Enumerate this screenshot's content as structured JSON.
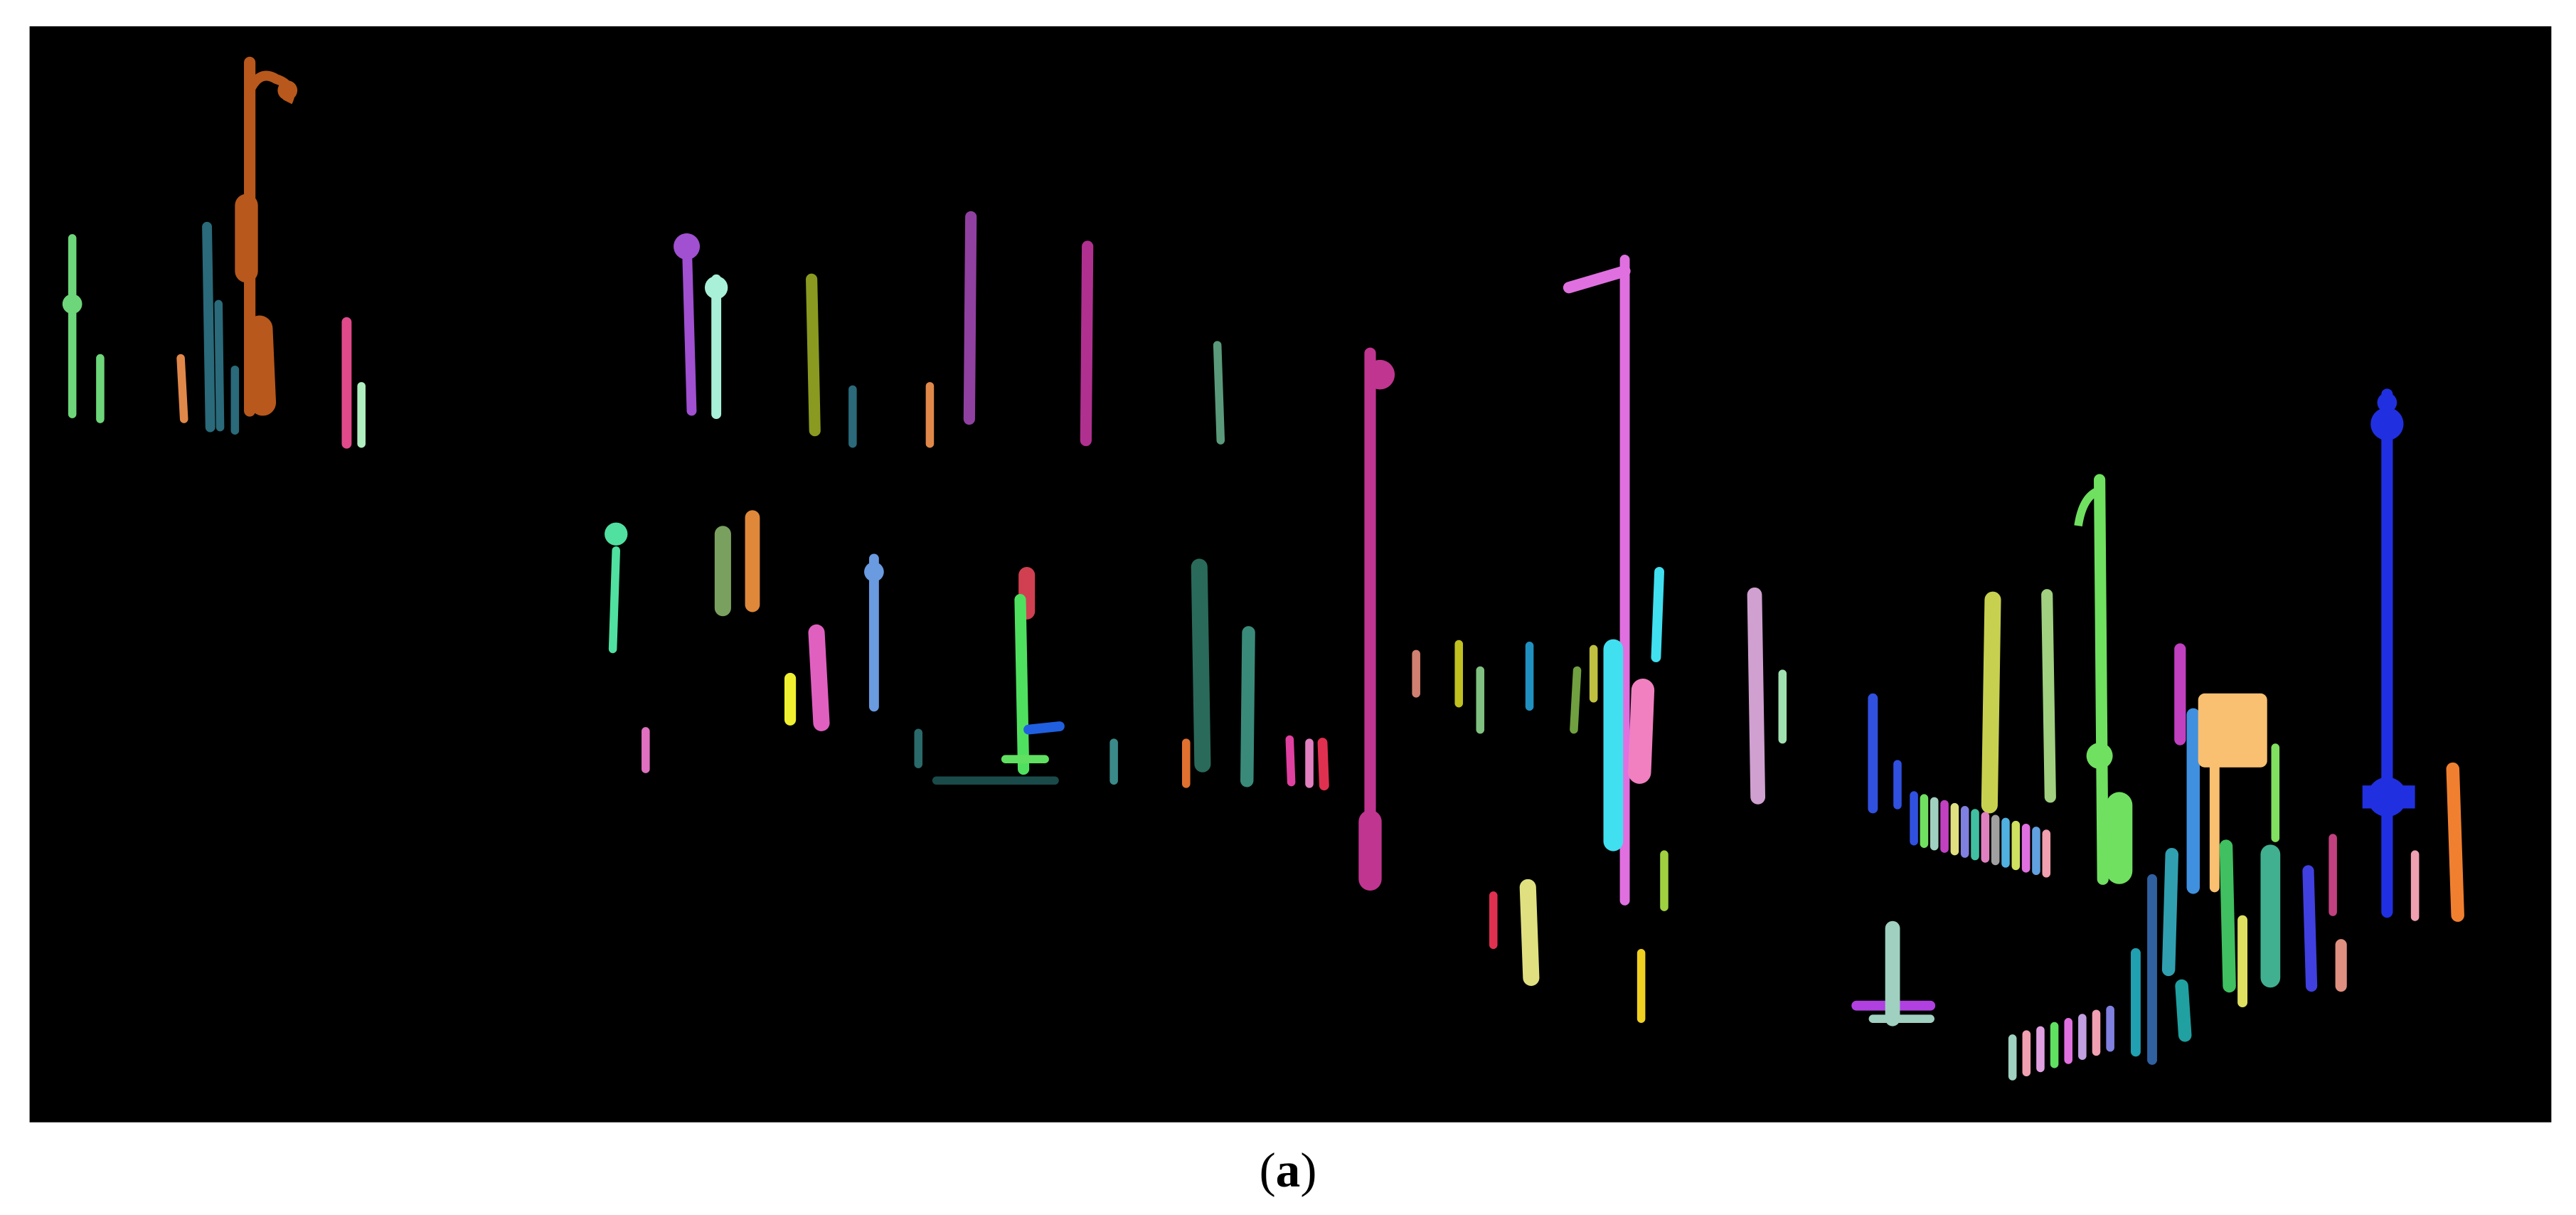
{
  "caption": {
    "open": "(",
    "label": "a",
    "close": ")"
  }
}
